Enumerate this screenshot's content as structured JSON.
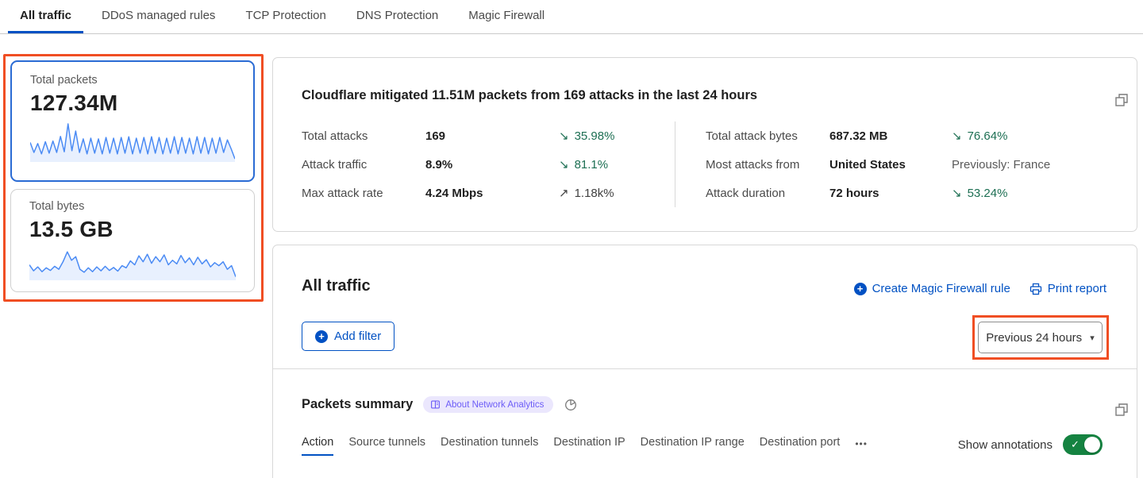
{
  "top_tabs": {
    "items": [
      {
        "label": "All traffic",
        "active": true
      },
      {
        "label": "DDoS managed rules",
        "active": false
      },
      {
        "label": "TCP Protection",
        "active": false
      },
      {
        "label": "DNS Protection",
        "active": false
      },
      {
        "label": "Magic Firewall",
        "active": false
      }
    ]
  },
  "metric_cards": {
    "packets": {
      "label": "Total packets",
      "value": "127.34M",
      "selected": true,
      "sparkline": [
        0.48,
        0.2,
        0.45,
        0.16,
        0.5,
        0.18,
        0.52,
        0.2,
        0.65,
        0.22,
        1.0,
        0.25,
        0.8,
        0.2,
        0.58,
        0.16,
        0.6,
        0.18,
        0.58,
        0.16,
        0.62,
        0.18,
        0.6,
        0.16,
        0.62,
        0.18,
        0.64,
        0.16,
        0.6,
        0.18,
        0.62,
        0.16,
        0.64,
        0.18,
        0.62,
        0.16,
        0.6,
        0.18,
        0.64,
        0.16,
        0.62,
        0.18,
        0.6,
        0.16,
        0.64,
        0.18,
        0.62,
        0.16,
        0.6,
        0.18,
        0.62,
        0.2,
        0.55,
        0.3,
        0.02
      ]
    },
    "bytes": {
      "label": "Total bytes",
      "value": "13.5 GB",
      "selected": false,
      "sparkline": [
        0.45,
        0.25,
        0.38,
        0.22,
        0.35,
        0.26,
        0.4,
        0.3,
        0.55,
        0.88,
        0.6,
        0.72,
        0.3,
        0.2,
        0.35,
        0.22,
        0.38,
        0.25,
        0.4,
        0.26,
        0.36,
        0.24,
        0.42,
        0.35,
        0.58,
        0.45,
        0.75,
        0.55,
        0.8,
        0.5,
        0.72,
        0.55,
        0.78,
        0.45,
        0.6,
        0.48,
        0.76,
        0.52,
        0.68,
        0.45,
        0.7,
        0.48,
        0.62,
        0.38,
        0.52,
        0.42,
        0.55,
        0.3,
        0.42,
        0.05
      ]
    }
  },
  "summary_card": {
    "title": "Cloudflare mitigated 11.51M packets from 169 attacks in the last 24 hours",
    "left_stats": [
      {
        "label": "Total attacks",
        "value": "169",
        "delta": "35.98%",
        "direction": "down"
      },
      {
        "label": "Attack traffic",
        "value": "8.9%",
        "delta": "81.1%",
        "direction": "down"
      },
      {
        "label": "Max attack rate",
        "value": "4.24 Mbps",
        "delta": "1.18k%",
        "direction": "up"
      }
    ],
    "right_stats": [
      {
        "label": "Total attack bytes",
        "value": "687.32 MB",
        "delta": "76.64%",
        "direction": "down"
      },
      {
        "label": "Most attacks from",
        "value": "United States",
        "delta": "Previously: France",
        "direction": "none"
      },
      {
        "label": "Attack duration",
        "value": "72 hours",
        "delta": "53.24%",
        "direction": "down"
      }
    ]
  },
  "all_traffic_section": {
    "heading": "All traffic",
    "create_rule_label": "Create Magic Firewall rule",
    "print_label": "Print report",
    "add_filter_label": "Add filter",
    "time_range_label": "Previous 24 hours"
  },
  "packets_summary": {
    "heading": "Packets summary",
    "badge_label": "About Network Analytics",
    "subtabs": [
      {
        "label": "Action",
        "active": true
      },
      {
        "label": "Source tunnels",
        "active": false
      },
      {
        "label": "Destination tunnels",
        "active": false
      },
      {
        "label": "Destination IP",
        "active": false
      },
      {
        "label": "Destination IP range",
        "active": false
      },
      {
        "label": "Destination port",
        "active": false
      }
    ],
    "more_label": "•••",
    "show_annotations_label": "Show annotations",
    "annotations_on": true
  },
  "glyphs": {
    "down_arrow": "↘",
    "up_arrow": "↗",
    "caret": "▾",
    "check": "✓",
    "plus": "+"
  },
  "colors": {
    "accent_blue": "#0051c3",
    "selected_card_blue": "#2a6bd4",
    "sparkline_blue": "#4b8bf4",
    "delta_green": "#1d6f53",
    "toggle_green": "#158341",
    "annotation_orange": "#f04e23",
    "badge_purple": "#6c5cf7",
    "badge_bg": "#ebe7fd"
  }
}
